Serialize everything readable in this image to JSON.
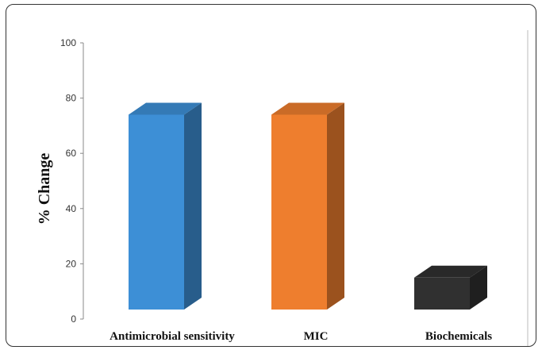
{
  "chart_data": {
    "type": "bar",
    "style": "3d-column",
    "categories": [
      "Antimicrobial sensitivity",
      "MIC",
      "Biochemicals"
    ],
    "values": [
      74,
      74,
      15
    ],
    "colors": [
      "#3d8fd6",
      "#ee7e2e",
      "#303030"
    ],
    "title": "",
    "xlabel": "",
    "ylabel": "% Change",
    "ylim": [
      0,
      100
    ],
    "yticks": [
      "0",
      "20",
      "40",
      "60",
      "80",
      "100"
    ],
    "grid": false,
    "legend": "none"
  }
}
